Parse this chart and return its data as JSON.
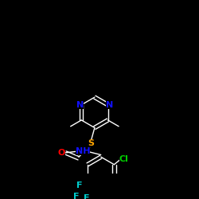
{
  "background_color": "#000000",
  "bond_color": "#ffffff",
  "atom_colors": {
    "N": "#1111ff",
    "S": "#ffa500",
    "O": "#ff0000",
    "F": "#00cccc",
    "Cl": "#00cc00",
    "C": "#ffffff",
    "H": "#ffffff"
  },
  "figsize": [
    2.5,
    2.5
  ],
  "dpi": 100
}
